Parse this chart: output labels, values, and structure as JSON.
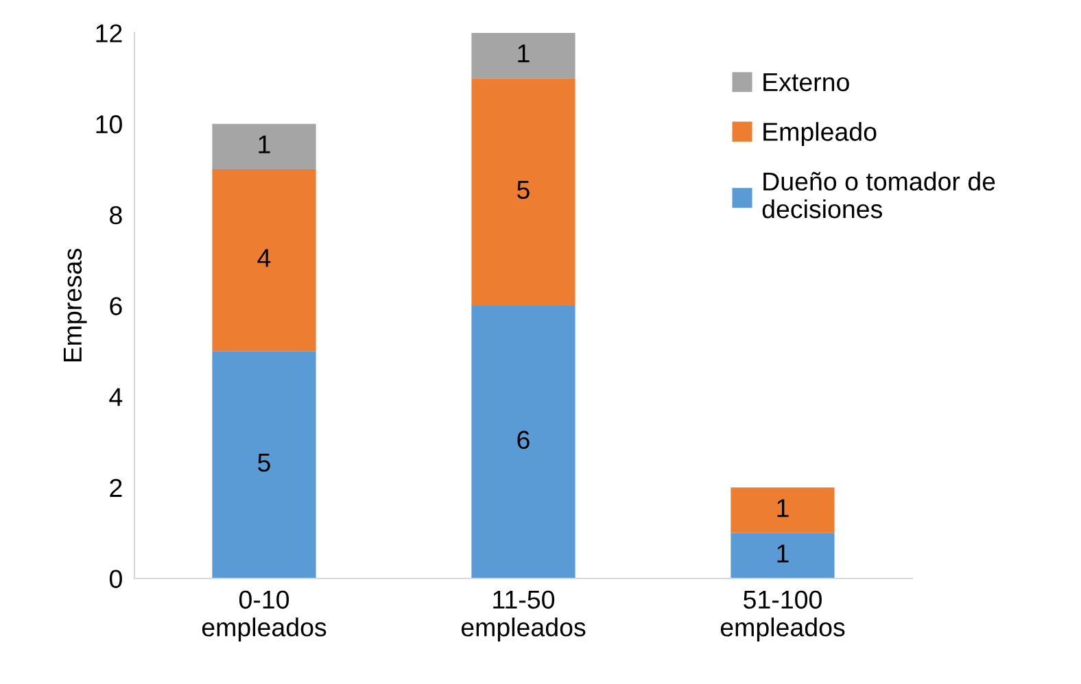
{
  "chart_data": {
    "type": "bar",
    "stacked": true,
    "ylabel": "Empresas",
    "categories": [
      "0-10 empleados",
      "11-50 empleados",
      "51-100 empleados"
    ],
    "series": [
      {
        "name": "Dueño o tomador de decisiones",
        "color": "#5b9bd5",
        "values": [
          5,
          6,
          1
        ]
      },
      {
        "name": "Empleado",
        "color": "#ed7d31",
        "values": [
          4,
          5,
          1
        ]
      },
      {
        "name": "Externo",
        "color": "#a5a5a5",
        "values": [
          1,
          1,
          null
        ]
      }
    ],
    "ylim": [
      0,
      12
    ],
    "yticks": [
      0,
      2,
      4,
      6,
      8,
      10,
      12
    ],
    "grid": false,
    "legend": "top right",
    "data_labels": true
  }
}
